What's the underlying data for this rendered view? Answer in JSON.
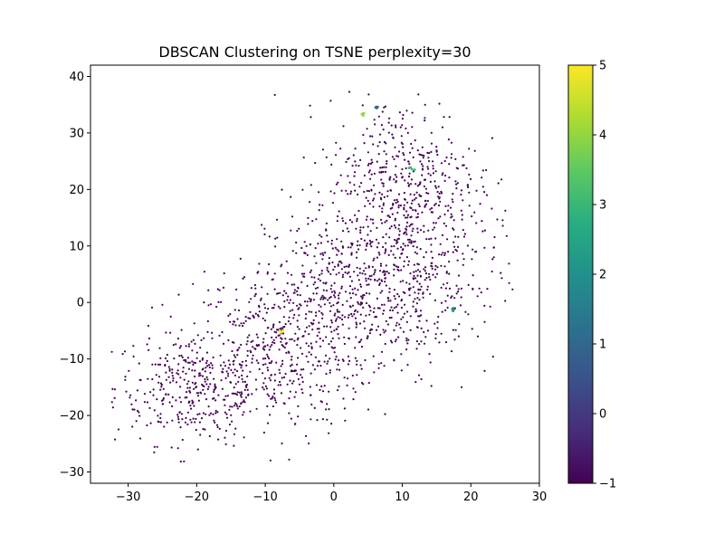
{
  "chart_data": {
    "type": "scatter",
    "title": "DBSCAN Clustering on TSNE perplexity=30",
    "xlabel": "",
    "ylabel": "",
    "xlim": [
      -35.5,
      30
    ],
    "ylim": [
      -32,
      42
    ],
    "x_ticks": [
      -30,
      -20,
      -10,
      0,
      10,
      20,
      30
    ],
    "y_ticks": [
      -30,
      -20,
      -10,
      0,
      10,
      20,
      30,
      40
    ],
    "grid": false,
    "marker_size": "small",
    "colormap": "viridis",
    "colorbar": {
      "min": -1,
      "max": 5,
      "ticks": [
        -1,
        0,
        1,
        2,
        3,
        4,
        5
      ]
    },
    "noise_label": -1,
    "noise_point_count": 2000,
    "clusters": [
      {
        "label": 0,
        "points": [
          [
            -7.6,
            -4.6
          ],
          [
            -7.7,
            -4.9
          ],
          [
            -7.7,
            -5.1
          ],
          [
            -7.5,
            -4.7
          ],
          [
            -7.8,
            -4.8
          ]
        ]
      },
      {
        "label": 1,
        "points": [
          [
            6.2,
            34.6
          ],
          [
            6.3,
            34.4
          ],
          [
            6.1,
            34.5
          ],
          [
            6.4,
            34.6
          ]
        ]
      },
      {
        "label": 2,
        "points": [
          [
            17.4,
            -1.0
          ],
          [
            17.5,
            -1.3
          ],
          [
            17.3,
            -1.2
          ],
          [
            17.4,
            -1.5
          ]
        ]
      },
      {
        "label": 3,
        "points": [
          [
            11.0,
            23.8
          ],
          [
            11.4,
            23.6
          ],
          [
            11.8,
            23.5
          ],
          [
            11.2,
            23.9
          ]
        ]
      },
      {
        "label": 4,
        "points": [
          [
            4.2,
            33.4
          ],
          [
            4.3,
            33.1
          ],
          [
            4.4,
            33.5
          ],
          [
            4.1,
            33.3
          ]
        ]
      },
      {
        "label": 5,
        "points": [
          [
            -7.9,
            -5.0
          ],
          [
            -7.6,
            -5.2
          ],
          [
            -7.8,
            -5.3
          ],
          [
            -7.4,
            -5.0
          ]
        ]
      }
    ],
    "noise_regions": [
      {
        "cx": -20,
        "cy": -15,
        "sx": 6,
        "sy": 5,
        "n": 380
      },
      {
        "cx": -8,
        "cy": -8,
        "sx": 6.5,
        "sy": 7,
        "n": 420
      },
      {
        "cx": 2,
        "cy": 2,
        "sx": 6,
        "sy": 8,
        "n": 420
      },
      {
        "cx": 12,
        "cy": 5,
        "sx": 6,
        "sy": 8,
        "n": 380
      },
      {
        "cx": 10,
        "cy": 22,
        "sx": 5.5,
        "sy": 7,
        "n": 400
      }
    ]
  }
}
